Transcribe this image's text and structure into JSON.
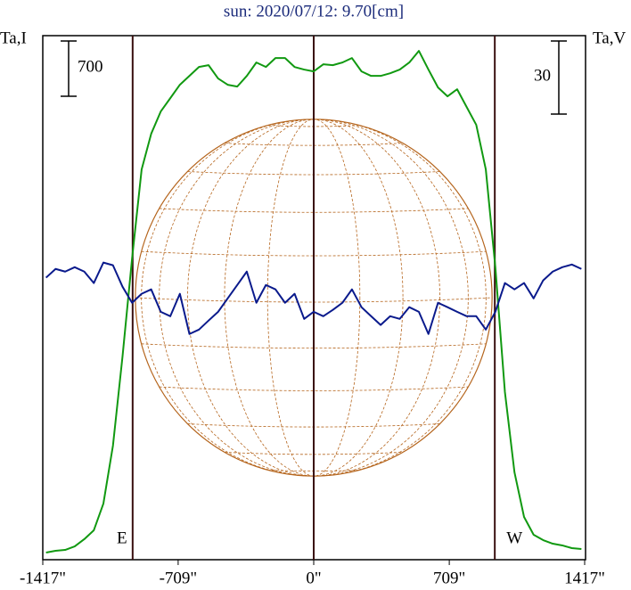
{
  "chart_data": {
    "type": "line",
    "title": "sun: 2020/07/12: 9.70[cm]",
    "ylabel": "Ta,I",
    "y2label": "Ta,V",
    "x": [
      -1400,
      -1350,
      -1300,
      -1250,
      -1200,
      -1150,
      -1100,
      -1050,
      -1000,
      -950,
      -900,
      -850,
      -800,
      -750,
      -700,
      -650,
      -600,
      -550,
      -500,
      -450,
      -400,
      -350,
      -300,
      -250,
      -200,
      -150,
      -100,
      -50,
      0,
      50,
      100,
      150,
      200,
      250,
      300,
      350,
      400,
      450,
      500,
      550,
      600,
      650,
      700,
      750,
      800,
      850,
      900,
      950,
      1000,
      1050,
      1100,
      1150,
      1200,
      1250,
      1300,
      1350,
      1400
    ],
    "series": [
      {
        "name": "Ta,I",
        "color": "#119911",
        "values": [
          90,
          113,
          124,
          169,
          260,
          373,
          711,
          1445,
          2574,
          3816,
          4945,
          5397,
          5679,
          5848,
          6018,
          6130,
          6243,
          6266,
          6097,
          6018,
          5995,
          6130,
          6300,
          6243,
          6356,
          6356,
          6243,
          6210,
          6187,
          6277,
          6266,
          6300,
          6356,
          6187,
          6130,
          6130,
          6164,
          6210,
          6300,
          6447,
          6210,
          5984,
          5871,
          5961,
          5735,
          5510,
          4945,
          3703,
          2123,
          1107,
          542,
          316,
          248,
          203,
          181,
          147,
          135
        ]
      },
      {
        "name": "Ta,V",
        "color": "#0a1a8c",
        "axis": "y2",
        "values": [
          115.7,
          119.3,
          118.2,
          120.0,
          118.2,
          113.5,
          121.9,
          120.8,
          112.0,
          105.4,
          109.1,
          110.9,
          101.7,
          99.9,
          109.1,
          92.6,
          94.4,
          98.1,
          101.7,
          107.2,
          112.7,
          118.2,
          105.4,
          112.7,
          110.9,
          105.4,
          109.1,
          98.8,
          101.7,
          99.9,
          102.5,
          105.4,
          110.9,
          103.6,
          99.9,
          96.3,
          99.9,
          98.8,
          103.6,
          101.7,
          92.6,
          105.4,
          103.6,
          101.7,
          99.9,
          99.9,
          94.4,
          101.7,
          113.5,
          110.9,
          113.5,
          107.2,
          114.6,
          118.2,
          120.0,
          121.1,
          119.3
        ]
      }
    ],
    "xlim": [
      -1417,
      1417
    ],
    "xticks": [
      {
        "value": -1417,
        "label": "-1417\""
      },
      {
        "value": -709,
        "label": "-709\""
      },
      {
        "value": 0,
        "label": "0\""
      },
      {
        "value": 709,
        "label": "709\""
      },
      {
        "value": 1417,
        "label": "1417\""
      }
    ],
    "ylim": [
      0,
      6640
    ],
    "y2lim": [
      0,
      215
    ],
    "scale_bar_y": 700,
    "scale_bar_y2": 30,
    "limbs": [
      {
        "x": -947,
        "label": "E"
      },
      {
        "x": 0
      },
      {
        "x": 947,
        "label": "W"
      }
    ],
    "disk_radius": 933
  }
}
